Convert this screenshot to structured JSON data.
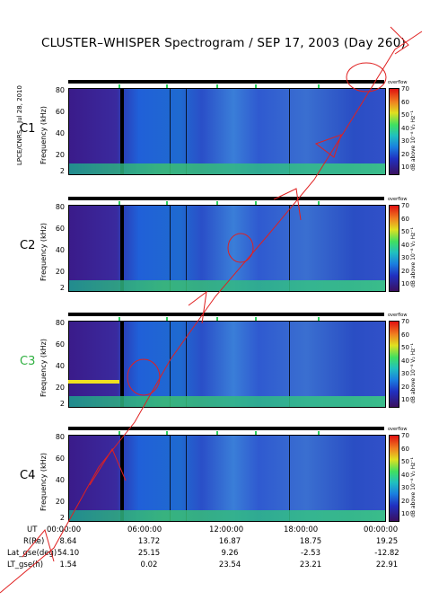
{
  "title": "CLUSTER–WHISPER Spectrogram / SEP 17, 2003 (Day 260)",
  "credit": "LPCE/CNRS – Jul 28, 2010",
  "ylabel": "Frequency (kHz)",
  "cbar_label": "dB above 10⁻⁸ V₂ Hz⁻¹",
  "cbar_over": "overflow",
  "cbar_ticks": [
    "70",
    "60",
    "50",
    "40",
    "30",
    "20",
    "10"
  ],
  "yticks": [
    "80",
    "60",
    "40",
    "20",
    "2"
  ],
  "satellites": [
    {
      "name": "C1",
      "color": "#000000"
    },
    {
      "name": "C2",
      "color": "#000000"
    },
    {
      "name": "C3",
      "color": "#2fb040"
    },
    {
      "name": "C4",
      "color": "#000000"
    }
  ],
  "x_ticks": [
    "00:00:00",
    "06:00:00",
    "12:00:00",
    "18:00:00",
    "00:00:00"
  ],
  "orbit": {
    "ut_label": "UT",
    "rows": [
      {
        "label": "R(Re)",
        "values": [
          "8.64",
          "13.72",
          "16.87",
          "18.75",
          "19.25"
        ]
      },
      {
        "label": "Lat_gse(deg)",
        "values": [
          "54.10",
          "25.15",
          "9.26",
          "-2.53",
          "-12.82"
        ]
      },
      {
        "label": "LT_gse(h)",
        "values": [
          "1.54",
          "0.02",
          "23.54",
          "23.21",
          "22.91"
        ]
      }
    ]
  },
  "chart_data": {
    "type": "heatmap",
    "title": "CLUSTER–WHISPER Spectrogram / SEP 17, 2003 (Day 260)",
    "xlabel": "UT",
    "ylabel": "Frequency (kHz)",
    "ylim": [
      2,
      80
    ],
    "colorbar_range": [
      10,
      70
    ],
    "x": [
      "00:00:00",
      "06:00:00",
      "12:00:00",
      "18:00:00",
      "00:00:00"
    ],
    "series": [
      {
        "name": "C1"
      },
      {
        "name": "C2"
      },
      {
        "name": "C3"
      },
      {
        "name": "C4"
      }
    ]
  }
}
